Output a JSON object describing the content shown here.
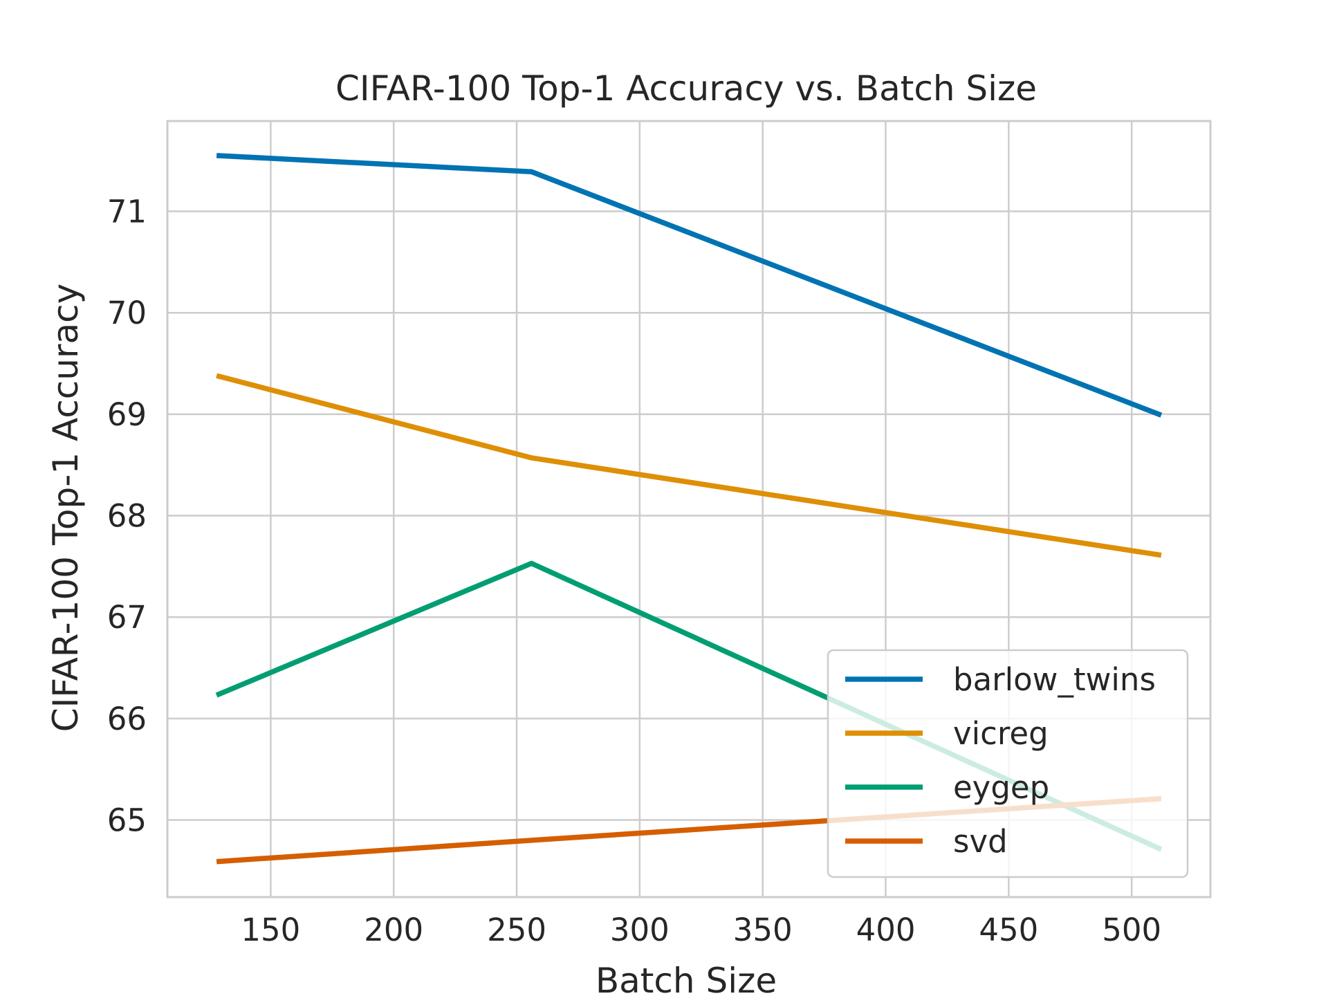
{
  "chart_data": {
    "type": "line",
    "title": "CIFAR-100 Top-1 Accuracy vs. Batch Size",
    "xlabel": "Batch Size",
    "ylabel": "CIFAR-100 Top-1 Accuracy",
    "xlim": [
      108,
      532
    ],
    "ylim": [
      64.24,
      71.89
    ],
    "xticks": [
      150,
      200,
      250,
      300,
      350,
      400,
      450,
      500
    ],
    "yticks": [
      65,
      66,
      67,
      68,
      69,
      70,
      71
    ],
    "grid": true,
    "legend_position": "lower-right",
    "x": [
      128,
      256,
      512
    ],
    "series": [
      {
        "name": "barlow_twins",
        "color": "#0173b2",
        "values": [
          71.55,
          71.39,
          68.99
        ]
      },
      {
        "name": "vicreg",
        "color": "#de8f05",
        "values": [
          69.38,
          68.57,
          67.61
        ]
      },
      {
        "name": "eygep",
        "color": "#029e73",
        "values": [
          66.23,
          67.53,
          64.71
        ]
      },
      {
        "name": "svd",
        "color": "#d55e00",
        "values": [
          64.59,
          64.8,
          65.21
        ]
      }
    ]
  }
}
